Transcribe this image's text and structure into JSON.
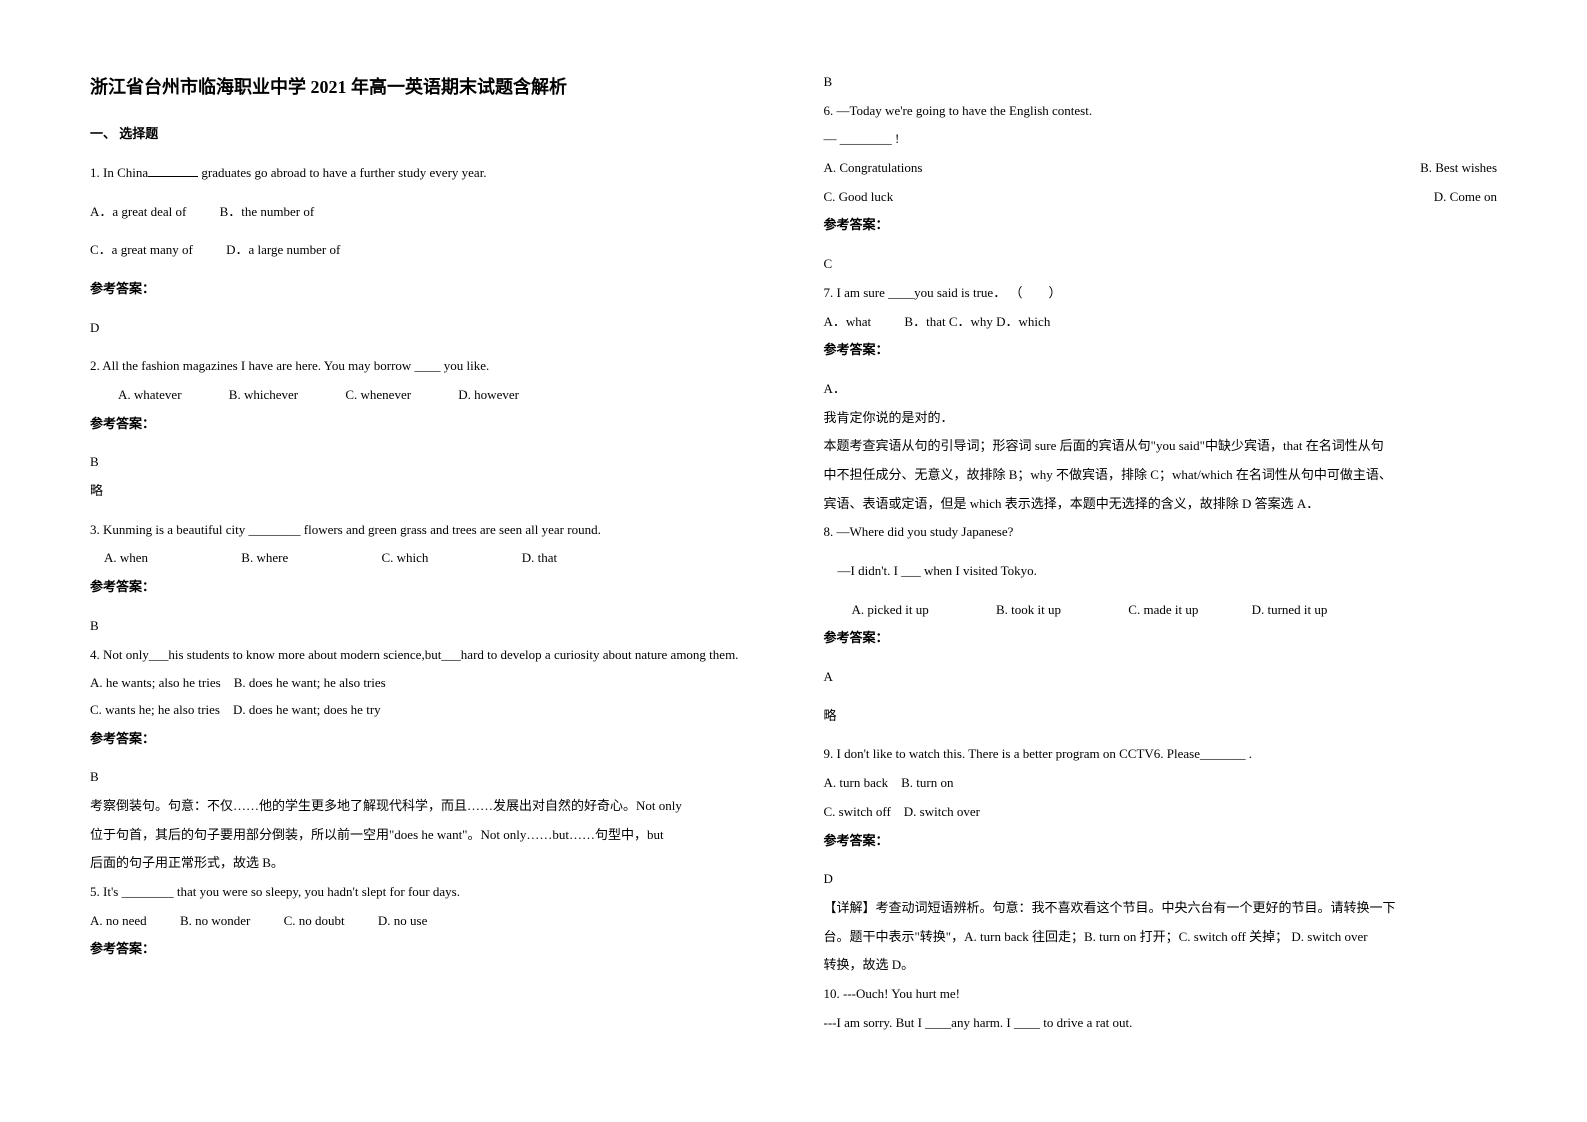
{
  "title": "浙江省台州市临海职业中学 2021 年高一英语期末试题含解析",
  "section_heading": "一、 选择题",
  "left": {
    "q1": {
      "stem_pre": "1. In China",
      "stem_post": "graduates go abroad to have a further study every year.",
      "optA": "A．a great deal of",
      "optB": "B．the number of",
      "optC": "C．a great many of",
      "optD": "D．a large number of",
      "answer_label": "参考答案：",
      "answer": "D"
    },
    "q2": {
      "stem": "2. All the fashion magazines I have are here. You may borrow ____ you like.",
      "optA": "A. whatever",
      "optB": "B. whichever",
      "optC": "C. whenever",
      "optD": "D. however",
      "answer_label": "参考答案：",
      "answer": "B",
      "note": "略"
    },
    "q3": {
      "stem": "3. Kunming is a beautiful city ________ flowers and green grass and trees are seen all year round.",
      "optA": "A. when",
      "optB": "B. where",
      "optC": "C. which",
      "optD": "D. that",
      "answer_label": "参考答案：",
      "answer": "B"
    },
    "q4": {
      "stem": "4. Not only___his students to know more about modern science,but___hard to develop a curiosity about nature among them.",
      "optA": "A. he wants; also he tries",
      "optB": "B. does he want; he also tries",
      "optC": "C. wants he; he also tries",
      "optD": "D. does he want; does he try",
      "answer_label": "参考答案：",
      "answer": "B",
      "explain1": "考察倒装句。句意：不仅……他的学生更多地了解现代科学，而且……发展出对自然的好奇心。Not only",
      "explain2": "位于句首，其后的句子要用部分倒装，所以前一空用\"does he want\"。Not only……but……句型中，but",
      "explain3": "后面的句子用正常形式，故选 B。"
    },
    "q5": {
      "stem": "5. It's ________ that you were so sleepy, you hadn't slept for four days.",
      "optA": "A. no need",
      "optB": "B. no wonder",
      "optC": "C. no doubt",
      "optD": "D. no use",
      "answer_label": "参考答案："
    }
  },
  "right": {
    "q5_answer": "B",
    "q6": {
      "stem1": "6. —Today we're going to have the English contest.",
      "stem2": "— ________ !",
      "optA": "A. Congratulations",
      "optB": "B. Best wishes",
      "optC": "C. Good luck",
      "optD": "D. Come on",
      "answer_label": "参考答案：",
      "answer": "C"
    },
    "q7": {
      "stem": "7. I am sure ____you said is true．  （　　）",
      "optA": "A．what",
      "optB": "B．that",
      "optC": "C．why",
      "optD": "D．which",
      "answer_label": "参考答案：",
      "answer": "A．",
      "explain1": "我肯定你说的是对的．",
      "explain2": "本题考查宾语从句的引导词；形容词 sure 后面的宾语从句\"you said\"中缺少宾语，that 在名词性从句",
      "explain3": "中不担任成分、无意义，故排除 B；why 不做宾语，排除 C；what/which 在名词性从句中可做主语、",
      "explain4": "宾语、表语或定语，但是 which 表示选择，本题中无选择的含义，故排除 D 答案选 A．"
    },
    "q8": {
      "stem1": "8. —Where did you study Japanese?",
      "stem2": "—I didn't. I ___ when I visited Tokyo.",
      "optA": "A. picked it up",
      "optB": "B. took it up",
      "optC": "C. made it up",
      "optD": "D. turned it up",
      "answer_label": "参考答案：",
      "answer": "A",
      "note": "略"
    },
    "q9": {
      "stem": "9. I don't like to watch this. There is a better program on CCTV6. Please_______ .",
      "optA": "A. turn back",
      "optB": "B. turn on",
      "optC": "C. switch off",
      "optD": "D. switch over",
      "answer_label": "参考答案：",
      "answer": "D",
      "explain1": "【详解】考查动词短语辨析。句意：我不喜欢看这个节目。中央六台有一个更好的节目。请转换一下",
      "explain2": "台。题干中表示\"转换\"，A. turn back 往回走；B. turn on 打开；C. switch off 关掉；        D. switch over",
      "explain3": "转换，故选 D。"
    },
    "q10": {
      "stem1": "10. ---Ouch! You hurt me!",
      "stem2": "---I am sorry. But I ____any harm. I ____ to drive a rat out."
    }
  }
}
